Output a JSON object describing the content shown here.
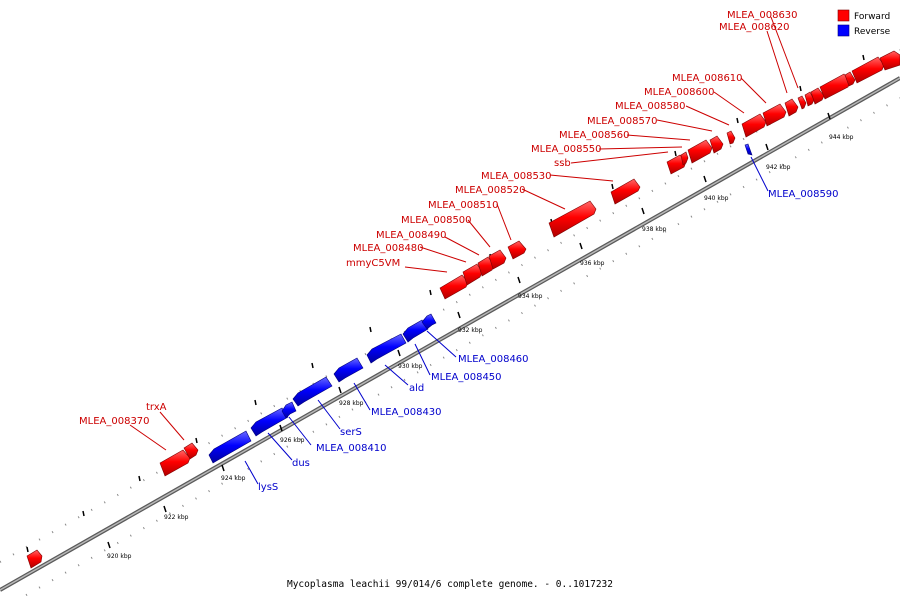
{
  "caption": "Mycoplasma leachii 99/014/6 complete genome. - 0..1017232",
  "legend": {
    "forward_label": "Forward",
    "reverse_label": "Reverse",
    "forward_color": "#ff0000",
    "reverse_color": "#0000ff"
  },
  "colors": {
    "forward_label": "#cc0000",
    "reverse_label": "#0000cc",
    "axis": "#888888"
  },
  "axis_ticks": [
    "920 kbp",
    "922 kbp",
    "924 kbp",
    "926 kbp",
    "928 kbp",
    "930 kbp",
    "932 kbp",
    "934 kbp",
    "936 kbp",
    "938 kbp",
    "940 kbp",
    "942 kbp",
    "944 kbp"
  ],
  "forward_labels": [
    "MLEA_008370",
    "trxA",
    "mmyC5VM",
    "MLEA_008480",
    "MLEA_008490",
    "MLEA_008500",
    "MLEA_008510",
    "MLEA_008520",
    "MLEA_008530",
    "ssb",
    "MLEA_008550",
    "MLEA_008560",
    "MLEA_008570",
    "MLEA_008580",
    "MLEA_008600",
    "MLEA_008610",
    "MLEA_008620",
    "MLEA_008630"
  ],
  "reverse_labels": [
    "lysS",
    "dus",
    "MLEA_008410",
    "serS",
    "MLEA_008430",
    "ald",
    "MLEA_008450",
    "MLEA_008460",
    "MLEA_008590"
  ]
}
